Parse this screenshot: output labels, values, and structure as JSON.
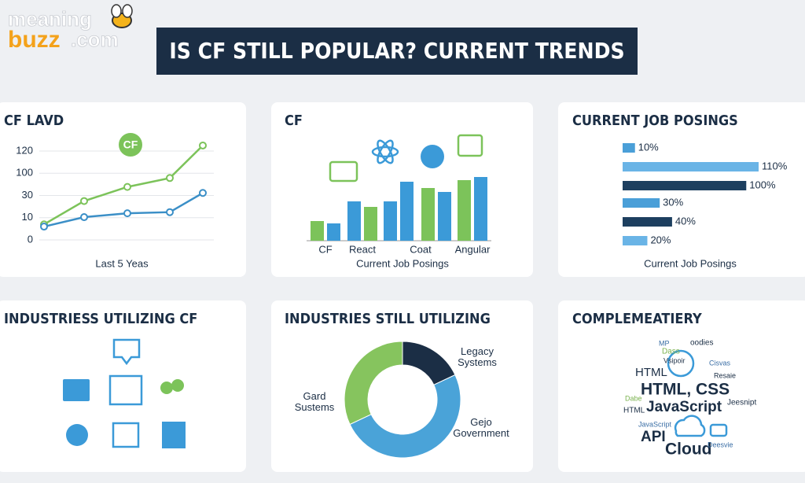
{
  "logo": {
    "part1": "meaning",
    "part2": "buzz",
    "part3": ".com"
  },
  "title": "IS CF STILL POPULAR? CURRENT TRENDS",
  "chart_data": [
    {
      "type": "line",
      "title": "CF LAVD",
      "x_label": "Last 5 Yeas",
      "annotation": "CF",
      "categories": [
        null,
        null,
        null,
        null,
        null
      ],
      "series": [
        {
          "color": "#7cc35a",
          "values": [
            7,
            25,
            57,
            85,
            125
          ]
        },
        {
          "color": "#3b8fc7",
          "values": [
            6,
            10.5,
            14,
            15,
            38
          ]
        }
      ],
      "ylim": [
        0,
        125
      ],
      "yticks": [
        0,
        10,
        30,
        100,
        120
      ]
    },
    {
      "type": "bar",
      "title": "CF",
      "x_label": "Current Job Posings",
      "categories": [
        "CF",
        "React",
        null,
        "Coat",
        "Angular"
      ],
      "series": [
        {
          "colors": [
            "#7cc35a",
            "#3b9ad8",
            "#3b9ad8",
            "#7cc35a",
            "#7cc35a"
          ],
          "values": [
            25,
            50,
            50,
            67,
            77
          ]
        },
        {
          "colors": [
            "#3b9ad8",
            "#7cc35a",
            "#3b9ad8",
            "#3b9ad8",
            "#3b9ad8"
          ],
          "values": [
            22,
            43,
            75,
            62,
            81
          ]
        }
      ],
      "ylim": [
        0,
        100
      ]
    },
    {
      "type": "hbar",
      "title": "CURRENT JOB POSINGS",
      "x_label": "Current Job Posings",
      "values": [
        10,
        110,
        100,
        30,
        40,
        20
      ],
      "value_labels": [
        "10%",
        "110%",
        "100%",
        "30%",
        "40%",
        "20%"
      ],
      "colors": [
        "#4a9fd8",
        "#6ab4e6",
        "#1d3f5f",
        "#4a9fd8",
        "#1d3f5f",
        "#6ab4e6"
      ],
      "xlim": [
        0,
        110
      ]
    },
    {
      "type": "donut",
      "title": "INDUSTRIES STILL UTILIZING",
      "categories": [
        "Legacy Systems",
        "Gejo Government",
        "Gard Sustems"
      ],
      "values": [
        18,
        50,
        32
      ],
      "colors": [
        "#1b2e45",
        "#4aa3d8",
        "#86c45e"
      ]
    }
  ],
  "industries": {
    "title": "INDUSTRIESS UTILIZING CF"
  },
  "complementary": {
    "title": "COMPLEMEATIERY",
    "words": [
      "MP",
      "oodies",
      "Dass",
      "Vsipoir",
      "HTML",
      "HTML, CSS",
      "JavaScript",
      "Dabe",
      "Jeesnipt",
      "HTML",
      "JavaScript",
      "API",
      "Cloud",
      "Resaie",
      "Cisvas",
      "Deesvie"
    ]
  }
}
